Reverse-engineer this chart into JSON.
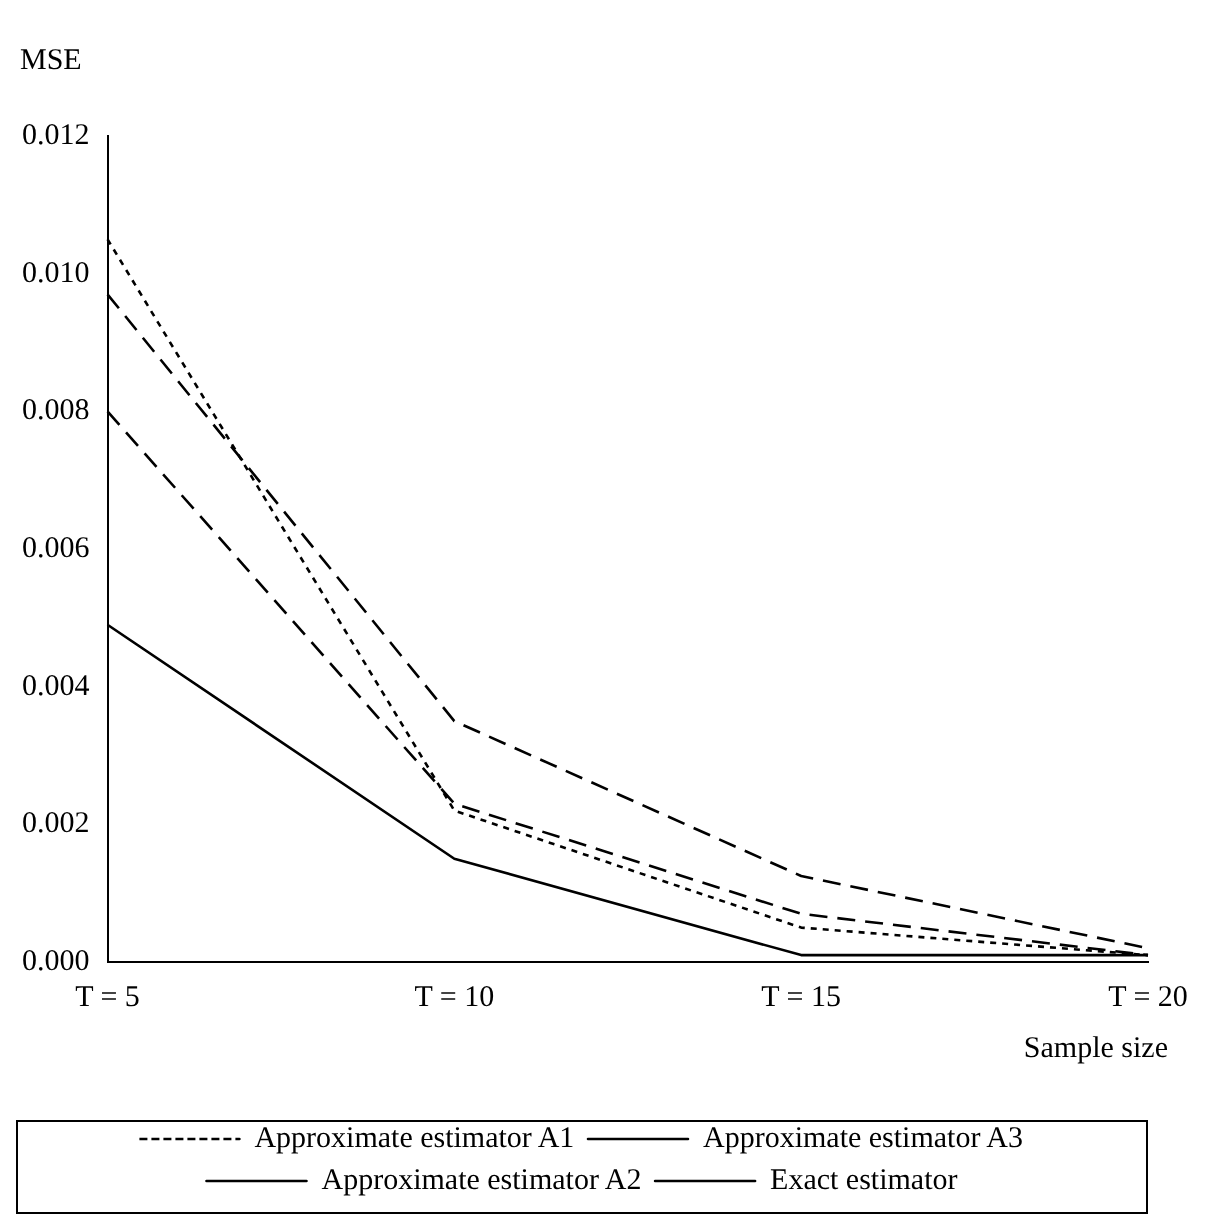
{
  "chart_data": {
    "type": "line",
    "ylabel": "MSE",
    "xlabel": "Sample size",
    "categories": [
      "T = 5",
      "T = 10",
      "T = 15",
      "T = 20"
    ],
    "series": [
      {
        "name": "Approximate estimator A1",
        "color": "#000000",
        "line_style": "dotted",
        "values": [
          0.0105,
          0.0022,
          0.0005,
          0.0001
        ]
      },
      {
        "name": "Approximate estimator A3",
        "color": "#000000",
        "line_style": "dashed",
        "values": [
          0.008,
          0.0023,
          0.0007,
          0.0001
        ]
      },
      {
        "name": "Approximate estimator A2",
        "color": "#000000",
        "line_style": "dashed",
        "values": [
          0.0097,
          0.0035,
          0.00125,
          0.0002
        ]
      },
      {
        "name": "Exact estimator",
        "color": "#000000",
        "line_style": "solid",
        "values": [
          0.0049,
          0.0015,
          0.0001,
          0.0001
        ]
      }
    ],
    "ylim": [
      0,
      0.012
    ],
    "yticks": [
      {
        "value": 0,
        "label": "0.000"
      },
      {
        "value": 0.002,
        "label": "0.002"
      },
      {
        "value": 0.004,
        "label": "0.004"
      },
      {
        "value": 0.006,
        "label": "0.006"
      },
      {
        "value": 0.008,
        "label": "0.008"
      },
      {
        "value": 0.01,
        "label": "0.010"
      },
      {
        "value": 0.012,
        "label": "0.012"
      }
    ],
    "grid": false,
    "legend": "bottom",
    "marker": "none"
  }
}
